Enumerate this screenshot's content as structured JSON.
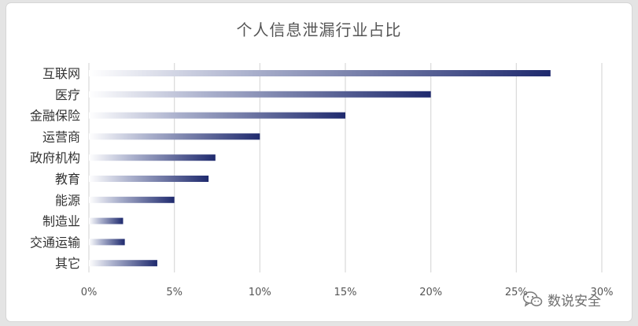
{
  "chart_data": {
    "type": "bar",
    "orientation": "horizontal",
    "title": "个人信息泄漏行业占比",
    "categories": [
      "互联网",
      "医疗",
      "金融保险",
      "运营商",
      "政府机构",
      "教育",
      "能源",
      "制造业",
      "交通运输",
      "其它"
    ],
    "values": [
      27,
      20,
      15,
      10,
      7.4,
      7,
      5,
      2,
      2.1,
      4
    ],
    "xlim": [
      0,
      30
    ],
    "xticks": [
      0,
      5,
      10,
      15,
      20,
      25,
      30
    ],
    "tick_format": "percent",
    "tick_labels": [
      "0%",
      "5%",
      "10%",
      "15%",
      "20%",
      "25%",
      "30%"
    ],
    "grid": true,
    "legend": "none",
    "bar_color_start": "#ffffff",
    "bar_color_end": "#1f2a6e"
  },
  "watermark": {
    "text": "数说安全",
    "icon": "wechat-icon"
  }
}
